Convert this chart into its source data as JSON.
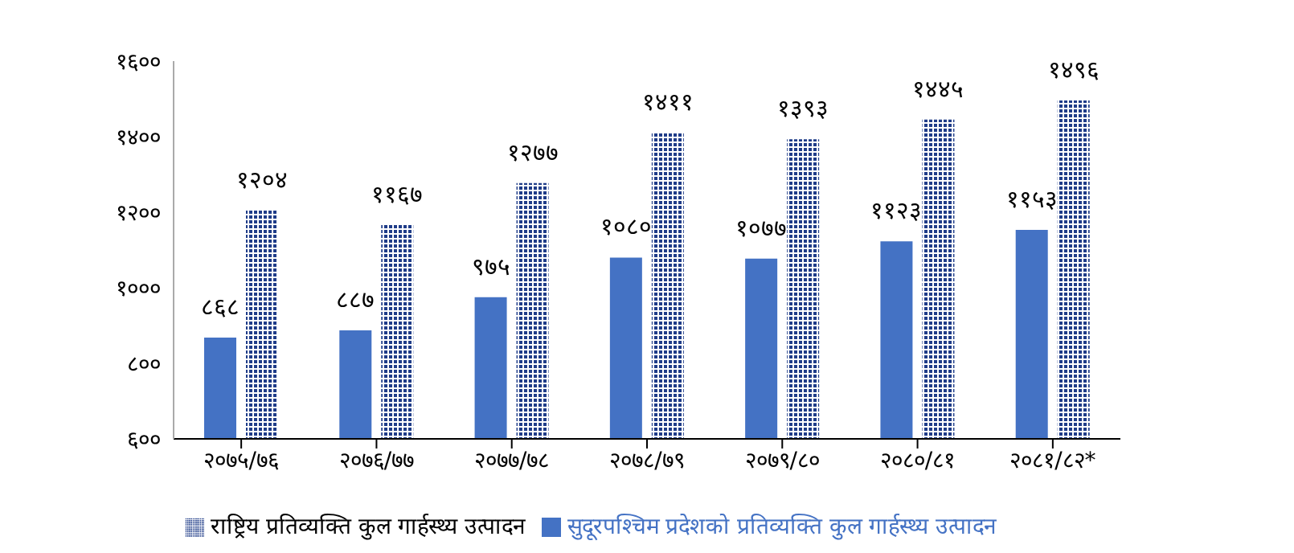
{
  "chart_data": {
    "type": "bar",
    "categories": [
      "२०७५/७६",
      "२०७६/७७",
      "२०७७/७८",
      "२०७८/७९",
      "२०७९/८०",
      "२०८०/८१",
      "२०८१/८२*"
    ],
    "series": [
      {
        "name": "सुदूरपश्चिम प्रदेशको प्रतिव्यक्ति कुल गार्हस्थ्य उत्पादन",
        "color": "#4472c4",
        "values": [
          868,
          887,
          975,
          1080,
          1077,
          1123,
          1153
        ],
        "value_labels": [
          "८६८",
          "८८७",
          "९७५",
          "१०८०",
          "१०७७",
          "११२३",
          "११५३"
        ]
      },
      {
        "name": "राष्ट्रिय प्रतिव्यक्ति कुल गार्हस्थ्य उत्पादन",
        "color": "#1f3c88",
        "values": [
          1204,
          1167,
          1277,
          1411,
          1393,
          1445,
          1496
        ],
        "value_labels": [
          "१२०४",
          "११६७",
          "१२७७",
          "१४११",
          "१३९३",
          "१४४५",
          "१४९६"
        ]
      }
    ],
    "ylim": [
      600,
      1600
    ],
    "yticks": [
      {
        "value": 600,
        "label": "६००"
      },
      {
        "value": 800,
        "label": "८००"
      },
      {
        "value": 1000,
        "label": "१०००"
      },
      {
        "value": 1200,
        "label": "१२००"
      },
      {
        "value": 1400,
        "label": "१४००"
      },
      {
        "value": 1600,
        "label": "१६००"
      }
    ],
    "legend": "bottom",
    "grid": false
  }
}
